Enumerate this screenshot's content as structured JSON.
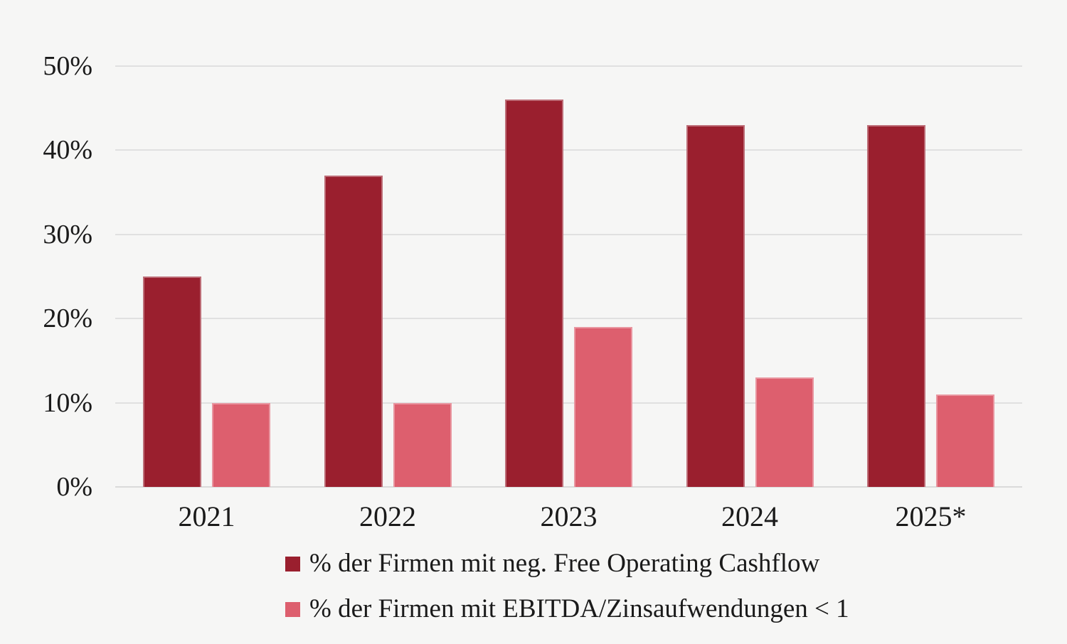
{
  "chart_data": {
    "type": "bar",
    "title": "",
    "categories": [
      "2021",
      "2022",
      "2023",
      "2024",
      "2025*"
    ],
    "series": [
      {
        "name": "% der Firmen mit neg. Free Operating Cashflow",
        "color": "#9a1f2e",
        "values": [
          25,
          37,
          46,
          43,
          43
        ]
      },
      {
        "name": "% der Firmen mit EBITDA/Zinsaufwendungen < 1",
        "color": "#dd5f6e",
        "values": [
          10,
          10,
          19,
          13,
          11
        ]
      }
    ],
    "unit": "%",
    "y_axis": {
      "min": 0,
      "max": 50,
      "step": 10,
      "tick_labels": [
        "0%",
        "10%",
        "20%",
        "30%",
        "40%",
        "50%"
      ]
    },
    "x_axis": {
      "label": ""
    },
    "grid": true,
    "legend_position": "bottom-left",
    "background_color": "#f6f6f5"
  }
}
